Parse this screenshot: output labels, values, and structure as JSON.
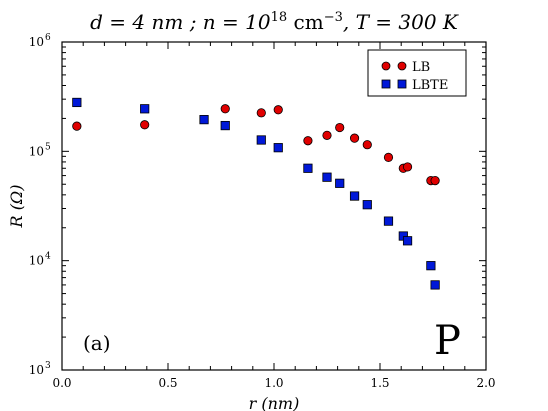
{
  "chart_data": {
    "type": "scatter",
    "title": {
      "d_part": "d = 4 nm ; ",
      "n_part": "n = 10",
      "n_exp": "18",
      "unit_part": " cm",
      "unit_exp": "−3",
      "t_part": ", T = 300 K"
    },
    "xlabel": "r (nm)",
    "ylabel": "R (Ω)",
    "xlim": [
      0.0,
      2.0
    ],
    "ylim": [
      1000,
      1000000
    ],
    "yscale": "log",
    "x_ticks": [
      "0.0",
      "0.5",
      "1.0",
      "1.5",
      "2.0"
    ],
    "y_ticks": [
      {
        "base": "10",
        "exp": "3"
      },
      {
        "base": "10",
        "exp": "4"
      },
      {
        "base": "10",
        "exp": "5"
      },
      {
        "base": "10",
        "exp": "6"
      }
    ],
    "legend_position": "top-right",
    "annotations": {
      "panel": "(a)",
      "corner": "P"
    },
    "series": [
      {
        "name": "LB",
        "marker": "circle",
        "color": "#e00000",
        "points": [
          [
            0.07,
            170000
          ],
          [
            0.39,
            175000
          ],
          [
            0.77,
            245000
          ],
          [
            0.94,
            225000
          ],
          [
            1.02,
            240000
          ],
          [
            1.16,
            125000
          ],
          [
            1.25,
            140000
          ],
          [
            1.31,
            165000
          ],
          [
            1.38,
            132000
          ],
          [
            1.44,
            115000
          ],
          [
            1.54,
            88000
          ],
          [
            1.61,
            70000
          ],
          [
            1.63,
            72000
          ],
          [
            1.74,
            54000
          ],
          [
            1.76,
            54000
          ]
        ]
      },
      {
        "name": "LBTE",
        "marker": "square",
        "color": "#0018d8",
        "points": [
          [
            0.07,
            280000
          ],
          [
            0.39,
            245000
          ],
          [
            0.67,
            195000
          ],
          [
            0.77,
            172000
          ],
          [
            0.94,
            127000
          ],
          [
            1.02,
            108000
          ],
          [
            1.16,
            70000
          ],
          [
            1.25,
            58000
          ],
          [
            1.31,
            51000
          ],
          [
            1.38,
            39000
          ],
          [
            1.44,
            32500
          ],
          [
            1.54,
            23000
          ],
          [
            1.61,
            16800
          ],
          [
            1.63,
            15200
          ],
          [
            1.74,
            9000
          ],
          [
            1.76,
            6000
          ]
        ]
      }
    ]
  }
}
